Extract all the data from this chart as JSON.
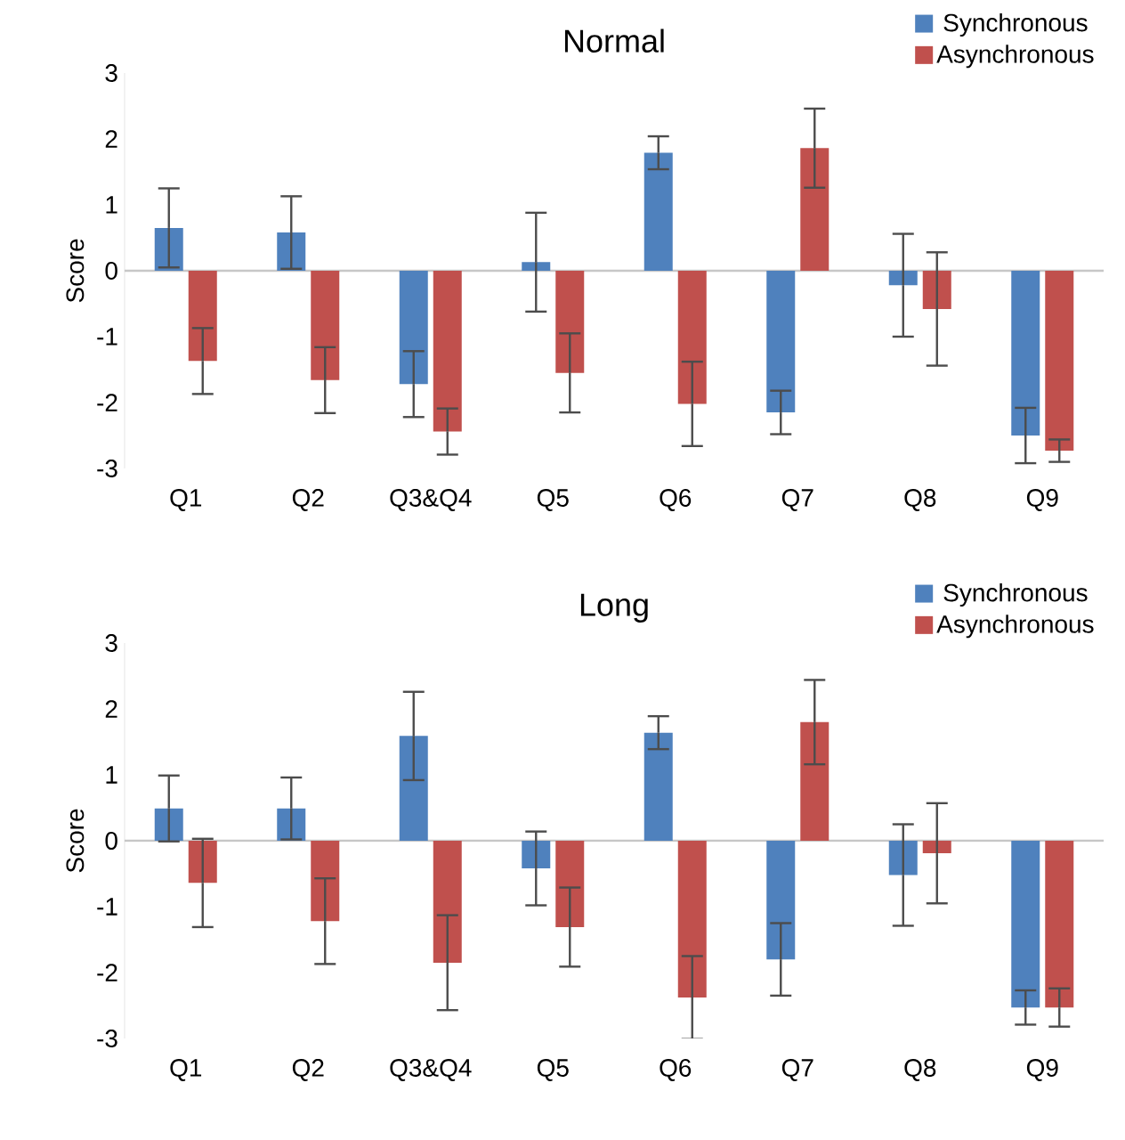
{
  "chart_data": [
    {
      "type": "bar",
      "title": "Normal",
      "ylabel": "Score",
      "categories": [
        "Q1",
        "Q2",
        "Q3&Q4",
        "Q5",
        "Q6",
        "Q7",
        "Q8",
        "Q9"
      ],
      "ylim": [
        -3,
        3
      ],
      "yticks": [
        -3,
        -2,
        -1,
        0,
        1,
        2,
        3
      ],
      "legend": "top right",
      "series": [
        {
          "name": "Synchronous",
          "color": "#4f81bd",
          "values": [
            0.65,
            0.58,
            -1.72,
            0.13,
            1.79,
            -2.15,
            -0.22,
            -2.5
          ],
          "errors": [
            0.6,
            0.55,
            0.5,
            0.75,
            0.25,
            0.33,
            0.78,
            0.42
          ]
        },
        {
          "name": "Asynchronous",
          "color": "#c0504d",
          "values": [
            -1.37,
            -1.66,
            -2.44,
            -1.55,
            -2.02,
            1.86,
            -0.58,
            -2.73
          ],
          "errors": [
            0.5,
            0.5,
            0.35,
            0.6,
            0.64,
            0.6,
            0.86,
            0.17
          ]
        }
      ]
    },
    {
      "type": "bar",
      "title": "Long",
      "ylabel": "Score",
      "categories": [
        "Q1",
        "Q2",
        "Q3&Q4",
        "Q5",
        "Q6",
        "Q7",
        "Q8",
        "Q9"
      ],
      "ylim": [
        -3,
        3
      ],
      "yticks": [
        -3,
        -2,
        -1,
        0,
        1,
        2,
        3
      ],
      "legend": "top right",
      "series": [
        {
          "name": "Synchronous",
          "color": "#4f81bd",
          "values": [
            0.49,
            0.49,
            1.59,
            -0.42,
            1.64,
            -1.8,
            -0.52,
            -2.53
          ],
          "errors": [
            0.5,
            0.47,
            0.67,
            0.56,
            0.25,
            0.55,
            0.77,
            0.26
          ]
        },
        {
          "name": "Asynchronous",
          "color": "#c0504d",
          "values": [
            -0.64,
            -1.22,
            -1.85,
            -1.31,
            -2.38,
            1.8,
            -0.19,
            -2.53
          ],
          "errors": [
            0.67,
            0.65,
            0.72,
            0.6,
            0.63,
            0.64,
            0.76,
            0.29
          ]
        }
      ]
    }
  ]
}
